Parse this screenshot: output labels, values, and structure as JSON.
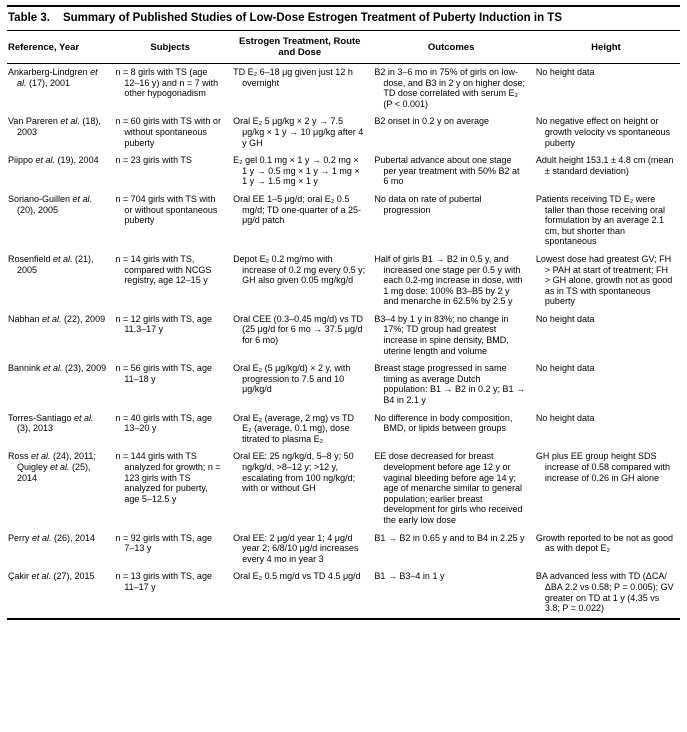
{
  "table": {
    "label": "Table 3.",
    "title": "Summary of Published Studies of Low-Dose Estrogen Treatment of Puberty Induction in TS",
    "columns": [
      "Reference, Year",
      "Subjects",
      "Estrogen Treatment, Route and Dose",
      "Outcomes",
      "Height"
    ],
    "rows": [
      {
        "reference": [
          {
            "text": "Ankarberg-Lindgren "
          },
          {
            "text": "et al.",
            "italic": true
          },
          {
            "text": " (17), 2001"
          }
        ],
        "subjects": "n = 8 girls with TS (age 12–16 y) and n = 7 with other hypogonadism",
        "treatment": "TD E₂ 6–18 μg given just 12 h overnight",
        "outcomes": "B2 in 3–6 mo in 75% of girls on low-dose, and B3 in 2 y on higher dose; TD dose correlated with serum E₂ (P < 0.001)",
        "height": "No height data"
      },
      {
        "reference": [
          {
            "text": "Van Pareren "
          },
          {
            "text": "et al.",
            "italic": true
          },
          {
            "text": " (18), 2003"
          }
        ],
        "subjects": "n = 60 girls with TS with or without spontaneous puberty",
        "treatment": "Oral E₂ 5 μg/kg × 2 y → 7.5 μg/kg × 1 y → 10 μg/kg after 4 y GH",
        "outcomes": "B2 onset in 0.2 y on average",
        "height": "No negative effect on height or growth velocity vs spontaneous puberty"
      },
      {
        "reference": [
          {
            "text": "Piippo "
          },
          {
            "text": "et al.",
            "italic": true
          },
          {
            "text": " (19), 2004"
          }
        ],
        "subjects": "n = 23 girls with TS",
        "treatment": "E₂ gel 0.1 mg × 1 y → 0.2 mg × 1 y → 0.5 mg × 1 y → 1 mg × 1 y → 1.5 mg × 1 y",
        "outcomes": "Pubertal advance about one stage per year treatment with 50% B2 at 6 mo",
        "height": "Adult height 153.1 ± 4.8 cm (mean ± standard deviation)"
      },
      {
        "reference": [
          {
            "text": "Soriano-Guillen "
          },
          {
            "text": "et al.",
            "italic": true
          },
          {
            "text": " (20), 2005"
          }
        ],
        "subjects": "n = 704 girls with TS with or without spontaneous puberty",
        "treatment": "Oral EE 1–5 μg/d; oral E₂ 0.5 mg/d; TD one-quarter of a 25-μg/d patch",
        "outcomes": "No data on rate of pubertal progression",
        "height": "Patients receiving TD E₂ were taller than those receiving oral formulation by an average 2.1 cm, but shorter than spontaneous"
      },
      {
        "reference": [
          {
            "text": "Rosenfield "
          },
          {
            "text": "et al.",
            "italic": true
          },
          {
            "text": " (21), 2005"
          }
        ],
        "subjects": "n = 14 girls with TS, compared with NCGS registry, age 12–15 y",
        "treatment": "Depot E₂ 0.2 mg/mo with increase of 0.2 mg every 0.5 y; GH also given 0.05 mg/kg/d",
        "outcomes": "Half of girls B1 → B2 in 0.5 y, and increased one stage per 0.5 y with each 0.2-mg increase in dose, with 1 mg dose: 100% B3–B5 by 2 y and menarche in 62.5% by 2.5 y",
        "height": "Lowest dose had greatest GV; FH > PAH at start of treatment; FH > GH alone, growth not as good as in TS with spontaneous puberty"
      },
      {
        "reference": [
          {
            "text": "Nabhan "
          },
          {
            "text": "et al.",
            "italic": true
          },
          {
            "text": " (22), 2009"
          }
        ],
        "subjects": "n = 12 girls with TS, age 11.3–17 y",
        "treatment": "Oral CEE (0.3–0.45 mg/d) vs TD (25 μg/d for 6 mo → 37.5 μg/d for 6 mo)",
        "outcomes": "B3–4 by 1 y in 83%; no change in 17%; TD group had greatest increase in spine density, BMD, uterine length and volume",
        "height": "No height data"
      },
      {
        "reference": [
          {
            "text": "Bannink "
          },
          {
            "text": "et al.",
            "italic": true
          },
          {
            "text": " (23), 2009"
          }
        ],
        "subjects": "n = 56 girls with TS, age 11–18 y",
        "treatment": "Oral E₂ (5 μg/kg/d) × 2 y, with progression to 7.5 and 10 μg/kg/d",
        "outcomes": "Breast stage progressed in same timing as average Dutch population: B1 → B2 in 0.2 y; B1 → B4 in 2.1 y",
        "height": "No height data"
      },
      {
        "reference": [
          {
            "text": "Torres-Santiago "
          },
          {
            "text": "et al.",
            "italic": true
          },
          {
            "text": " (3), 2013"
          }
        ],
        "subjects": "n = 40 girls with TS, age 13–20 y",
        "treatment": "Oral E₂ (average, 2 mg) vs TD E₂ (average, 0.1 mg), dose titrated to plasma E₂",
        "outcomes": "No difference in body composition, BMD, or lipids between groups",
        "height": "No height data"
      },
      {
        "reference": [
          {
            "text": "Ross "
          },
          {
            "text": "et al.",
            "italic": true
          },
          {
            "text": " (24), 2011; Quigley "
          },
          {
            "text": "et al.",
            "italic": true
          },
          {
            "text": " (25), 2014"
          }
        ],
        "subjects": "n = 144 girls with TS analyzed for growth; n = 123 girls with TS analyzed for puberty, age 5–12.5 y",
        "treatment": "Oral EE: 25 ng/kg/d, 5–8 y; 50 ng/kg/d, >8–12 y; >12 y, escalating from 100 ng/kg/d; with or without GH",
        "outcomes": "EE dose decreased for breast development before age 12 y or vaginal bleeding before age 14 y; age of menarche similar to general population; earlier breast development for girls who received the early low dose",
        "height": "GH plus EE group height SDS increase of 0.58 compared with increase of 0.26 in GH alone"
      },
      {
        "reference": [
          {
            "text": "Perry "
          },
          {
            "text": "et al.",
            "italic": true
          },
          {
            "text": " (26), 2014"
          }
        ],
        "subjects": "n = 92 girls with TS, age 7–13 y",
        "treatment": "Oral EE: 2 μg/d year 1; 4 μg/d year 2; 6/8/10 μg/d increases every 4 mo in year 3",
        "outcomes": "B1 → B2 in 0.65 y and to B4 in 2.25 y",
        "height": "Growth reported to be not as good as with depot E₂"
      },
      {
        "reference": [
          {
            "text": "Çakir "
          },
          {
            "text": "et al.",
            "italic": true
          },
          {
            "text": " (27), 2015"
          }
        ],
        "subjects": "n = 13 girls with TS, age 11–17 y",
        "treatment": "Oral E₂ 0.5 mg/d vs TD 4.5 μg/d",
        "outcomes": "B1 → B3–4 in 1 y",
        "height": "BA advanced less with TD (ΔCA/ΔBA 2.2 vs 0.58; P = 0.005); GV greater on TD at 1 y (4.35 vs 3.8; P = 0.022)"
      }
    ]
  }
}
